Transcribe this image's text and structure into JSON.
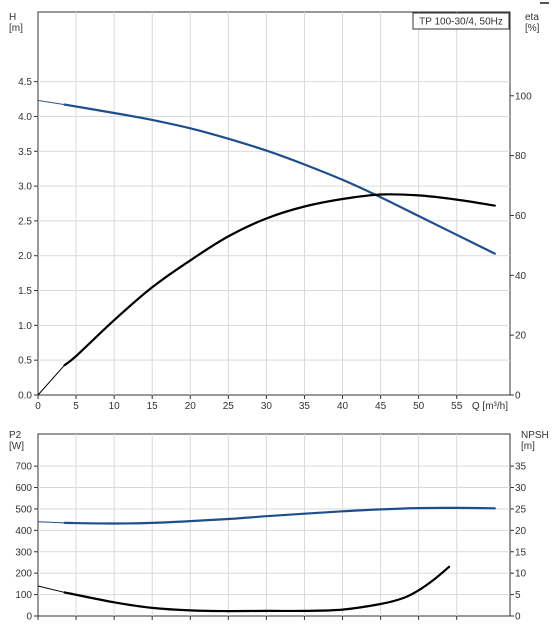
{
  "chart_data": [
    {
      "type": "line",
      "title": "TP 100-30/4, 50Hz",
      "x_axis": {
        "label": "Q [m³/h]",
        "range": [
          0,
          62
        ],
        "ticks": [
          0,
          5,
          10,
          15,
          20,
          25,
          30,
          35,
          40,
          45,
          50,
          55
        ],
        "tick_labels": [
          "0",
          "5",
          "10",
          "15",
          "20",
          "25",
          "30",
          "35",
          "40",
          "45",
          "50",
          "55"
        ]
      },
      "y_left": {
        "label_name": "H",
        "label_unit": "[m]",
        "range": [
          0,
          5.5
        ],
        "ticks": [
          0.0,
          0.5,
          1.0,
          1.5,
          2.0,
          2.5,
          3.0,
          3.5,
          4.0,
          4.5
        ],
        "tick_labels": [
          "0.0",
          "0.5",
          "1.0",
          "1.5",
          "2.0",
          "2.5",
          "3.0",
          "3.5",
          "4.0",
          "4.5"
        ]
      },
      "y_right": {
        "label_name": "eta",
        "label_unit": "[%]",
        "range": [
          0,
          128
        ],
        "ticks": [
          0,
          20,
          40,
          60,
          80,
          100
        ],
        "tick_labels": [
          "0",
          "20",
          "40",
          "60",
          "80",
          "100"
        ]
      },
      "grid": true,
      "series": [
        {
          "color": "#1f4e8c",
          "axis": "left",
          "x": [
            3.5,
            10,
            15,
            20,
            25,
            30,
            35,
            40,
            45,
            50,
            55,
            60
          ],
          "y": [
            4.17,
            4.05,
            3.95,
            3.83,
            3.68,
            3.51,
            3.31,
            3.09,
            2.84,
            2.57,
            2.3,
            2.03
          ],
          "extension": {
            "x": [
              0,
              3.5
            ],
            "y": [
              4.23,
              4.17
            ]
          }
        },
        {
          "color": "#000000",
          "axis": "right",
          "x": [
            3.5,
            5,
            10,
            15,
            20,
            25,
            30,
            35,
            40,
            45,
            50,
            55,
            60
          ],
          "y": [
            10,
            13,
            25,
            36,
            45,
            53,
            59,
            63,
            65.5,
            67,
            66.7,
            65.3,
            63.3
          ],
          "extension": {
            "x": [
              0,
              3.5
            ],
            "y": [
              0,
              10
            ]
          }
        }
      ]
    },
    {
      "type": "line",
      "x_axis": {
        "range": [
          0,
          62
        ],
        "ticks": [
          0,
          5,
          10,
          15,
          20,
          25,
          30,
          35,
          40,
          45,
          50,
          55
        ]
      },
      "y_left": {
        "label_name": "P2",
        "label_unit": "[W]",
        "range": [
          0,
          850
        ],
        "ticks": [
          0,
          100,
          200,
          300,
          400,
          500,
          600,
          700
        ],
        "tick_labels": [
          "0",
          "100",
          "200",
          "300",
          "400",
          "500",
          "600",
          "700"
        ]
      },
      "y_right": {
        "label_name": "NPSH",
        "label_unit": "[m]",
        "range": [
          0,
          42.5
        ],
        "ticks": [
          0,
          5,
          10,
          15,
          20,
          25,
          30,
          35
        ],
        "tick_labels": [
          "0",
          "5",
          "10",
          "15",
          "20",
          "25",
          "30",
          "35"
        ]
      },
      "grid": true,
      "series": [
        {
          "color": "#1f4e8c",
          "axis": "left",
          "x": [
            3.5,
            10,
            15,
            20,
            25,
            30,
            35,
            40,
            45,
            50,
            55,
            60
          ],
          "y": [
            435,
            432,
            435,
            443,
            453,
            466,
            478,
            489,
            498,
            504,
            505,
            503
          ],
          "extension": {
            "x": [
              0,
              3.5
            ],
            "y": [
              440,
              435
            ]
          }
        },
        {
          "color": "#000000",
          "axis": "right",
          "x": [
            3.5,
            10,
            15,
            20,
            25,
            30,
            35,
            40,
            45,
            48,
            50,
            52,
            54
          ],
          "y": [
            5.5,
            3.2,
            1.9,
            1.3,
            1.15,
            1.2,
            1.2,
            1.5,
            2.8,
            4.2,
            6,
            8.5,
            11.5
          ],
          "extension": {
            "x": [
              0,
              3.5
            ],
            "y": [
              7,
              5.5
            ]
          }
        }
      ]
    }
  ]
}
